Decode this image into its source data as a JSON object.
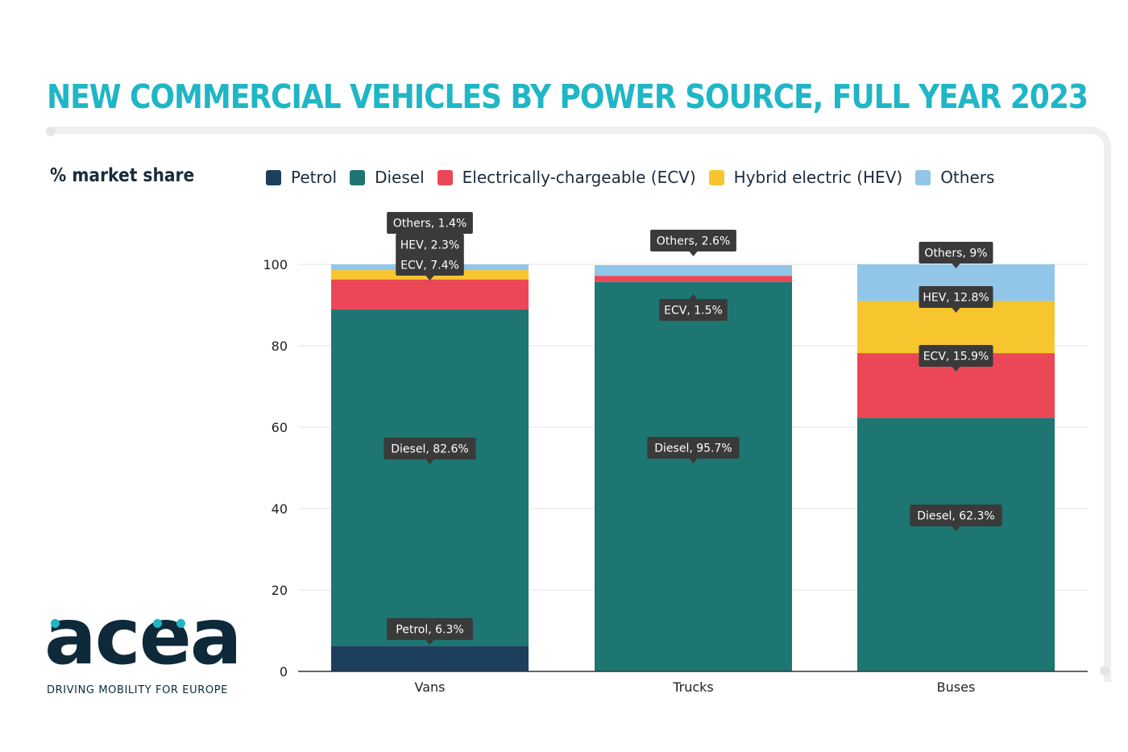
{
  "title": "NEW COMMERCIAL VEHICLES BY POWER SOURCE, FULL YEAR 2023",
  "logo": {
    "wordmark": "acea",
    "tagline": "DRIVING MOBILITY FOR EUROPE"
  },
  "chart_data": {
    "type": "bar",
    "stacked": true,
    "title": "NEW COMMERCIAL VEHICLES BY POWER SOURCE, FULL YEAR 2023",
    "ylabel": "% market share",
    "xlabel": "",
    "ylim": [
      0,
      100
    ],
    "yticks": [
      0,
      20,
      40,
      60,
      80,
      100
    ],
    "grid": true,
    "legend_position": "top",
    "categories": [
      "Vans",
      "Trucks",
      "Buses"
    ],
    "series": [
      {
        "name": "Petrol",
        "color": "#1d3f5e",
        "values": [
          6.3,
          0,
          0
        ]
      },
      {
        "name": "Diesel",
        "color": "#1d7672",
        "values": [
          82.6,
          95.7,
          62.3
        ]
      },
      {
        "name": "Electrically-chargeable (ECV)",
        "short": "ECV",
        "color": "#ec4756",
        "values": [
          7.4,
          1.5,
          15.9
        ]
      },
      {
        "name": "Hybrid electric (HEV)",
        "short": "HEV",
        "color": "#f7c62f",
        "values": [
          2.3,
          0,
          12.8
        ]
      },
      {
        "name": "Others",
        "color": "#92c6e8",
        "values": [
          1.4,
          2.6,
          9
        ]
      }
    ],
    "data_labels": [
      {
        "category": "Vans",
        "text": "Petrol, 6.3%"
      },
      {
        "category": "Vans",
        "text": "Diesel, 82.6%"
      },
      {
        "category": "Vans",
        "text": "ECV, 7.4%"
      },
      {
        "category": "Vans",
        "text": "HEV, 2.3%"
      },
      {
        "category": "Vans",
        "text": "Others, 1.4%"
      },
      {
        "category": "Trucks",
        "text": "Diesel, 95.7%"
      },
      {
        "category": "Trucks",
        "text": "ECV, 1.5%"
      },
      {
        "category": "Trucks",
        "text": "Others, 2.6%"
      },
      {
        "category": "Buses",
        "text": "Diesel, 62.3%"
      },
      {
        "category": "Buses",
        "text": "ECV, 15.9%"
      },
      {
        "category": "Buses",
        "text": "HEV, 12.8%"
      },
      {
        "category": "Buses",
        "text": "Others, 9%"
      }
    ]
  }
}
